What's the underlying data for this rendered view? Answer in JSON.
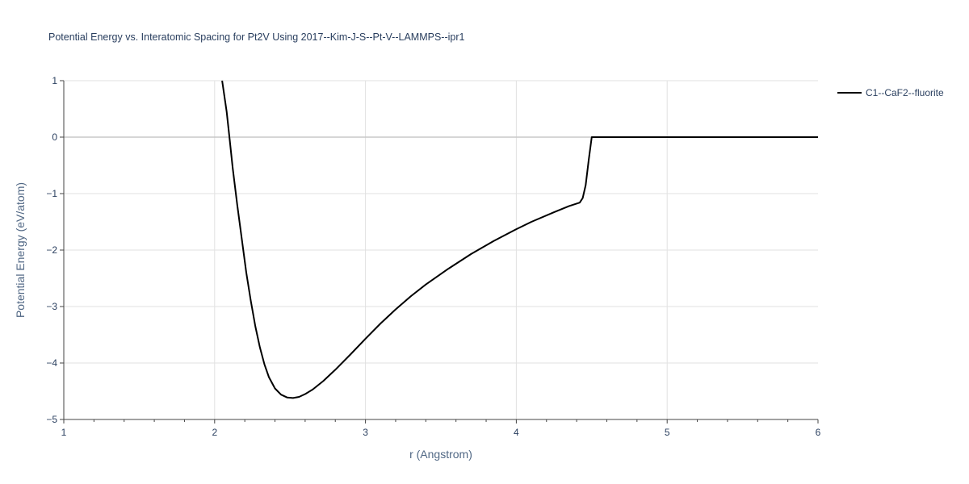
{
  "chart_data": {
    "type": "line",
    "title": "Potential Energy vs. Interatomic Spacing for Pt2V Using 2017--Kim-J-S--Pt-V--LAMMPS--ipr1",
    "xlabel": "r (Angstrom)",
    "ylabel": "Potential Energy (eV/atom)",
    "xlim": [
      1,
      6
    ],
    "ylim": [
      -5,
      1
    ],
    "xticks": [
      1,
      2,
      3,
      4,
      5,
      6
    ],
    "xtick_labels": [
      "1",
      "2",
      "3",
      "4",
      "5",
      "6"
    ],
    "yticks": [
      -5,
      -4,
      -3,
      -2,
      -1,
      0,
      1
    ],
    "ytick_labels": [
      "−5",
      "−4",
      "−3",
      "−2",
      "−1",
      "0",
      "1"
    ],
    "grid": true,
    "legend_position": "top-right",
    "series": [
      {
        "name": "C1--CaF2--fluorite",
        "color": "#000000",
        "x": [
          2.05,
          2.08,
          2.1,
          2.12,
          2.15,
          2.18,
          2.21,
          2.24,
          2.27,
          2.3,
          2.33,
          2.36,
          2.4,
          2.44,
          2.48,
          2.52,
          2.56,
          2.6,
          2.65,
          2.72,
          2.8,
          2.9,
          3.0,
          3.1,
          3.2,
          3.3,
          3.4,
          3.55,
          3.7,
          3.85,
          4.0,
          4.1,
          4.25,
          4.35,
          4.42,
          4.44,
          4.46,
          4.48,
          4.5,
          4.6,
          5.0,
          5.5,
          6.0
        ],
        "y": [
          1.0,
          0.45,
          -0.05,
          -0.55,
          -1.2,
          -1.8,
          -2.4,
          -2.9,
          -3.35,
          -3.72,
          -4.02,
          -4.25,
          -4.45,
          -4.56,
          -4.61,
          -4.62,
          -4.6,
          -4.55,
          -4.47,
          -4.32,
          -4.12,
          -3.85,
          -3.57,
          -3.3,
          -3.05,
          -2.82,
          -2.61,
          -2.33,
          -2.07,
          -1.84,
          -1.63,
          -1.5,
          -1.33,
          -1.22,
          -1.16,
          -1.08,
          -0.85,
          -0.4,
          0.0,
          0.0,
          0.0,
          0.0,
          0.0
        ]
      }
    ]
  }
}
